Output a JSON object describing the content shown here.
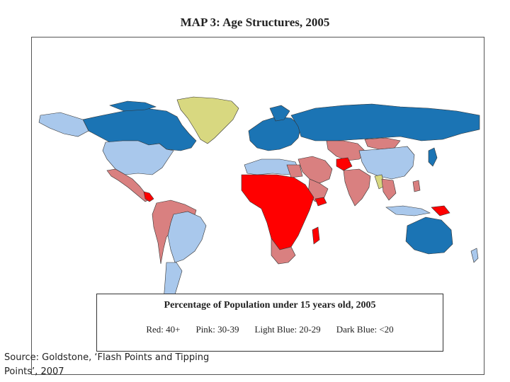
{
  "title": "MAP 3:  Age Structures, 2005",
  "legend": {
    "title": "Percentage of Population under 15 years old, 2005",
    "items": [
      {
        "label": "Red: 40+",
        "color": "#ff0000"
      },
      {
        "label": "Pink: 30-39",
        "color": "#d98080"
      },
      {
        "label": "Light Blue: 20-29",
        "color": "#a9c8ec"
      },
      {
        "label": "Dark Blue: <20",
        "color": "#1b74b4"
      }
    ],
    "no_data_color": "#d8d880"
  },
  "source": "Source: Goldstone, ‘Flash Points and Tipping Points’, 2007",
  "icons": []
}
